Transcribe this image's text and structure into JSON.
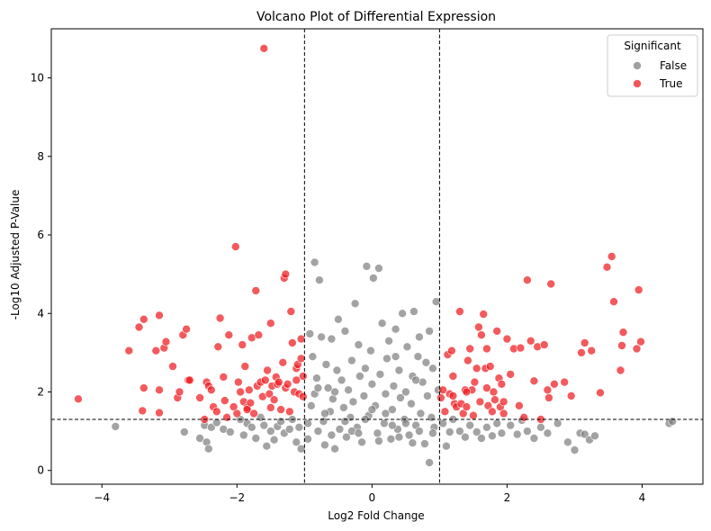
{
  "chart_data": {
    "type": "scatter",
    "title": "Volcano Plot of Differential Expression",
    "xlabel": "Log2 Fold Change",
    "ylabel": "-Log10 Adjusted P-Value",
    "xlim": [
      -4.75,
      4.9
    ],
    "ylim": [
      -0.35,
      11.25
    ],
    "xticks": [
      -4,
      -2,
      0,
      2,
      4
    ],
    "yticks": [
      0,
      2,
      4,
      6,
      8,
      10
    ],
    "thresholds": {
      "fold_change": [
        -1,
        1
      ],
      "neg_log10_p": 1.3
    },
    "grid": false,
    "legend": {
      "title": "Significant",
      "position": "top-right",
      "entries": [
        "False",
        "True"
      ]
    },
    "colors": {
      "False": "#808080",
      "True": "#ef1b1e"
    },
    "series": [
      {
        "name": "False",
        "points": [
          [
            -3.8,
            1.12
          ],
          [
            -2.78,
            0.98
          ],
          [
            -2.55,
            0.82
          ],
          [
            -2.48,
            1.15
          ],
          [
            -2.45,
            0.72
          ],
          [
            -2.42,
            0.55
          ],
          [
            -2.38,
            1.1
          ],
          [
            -2.3,
            1.22
          ],
          [
            -2.2,
            1.05
          ],
          [
            -2.1,
            0.98
          ],
          [
            -1.95,
            1.3
          ],
          [
            -1.9,
            0.9
          ],
          [
            -1.85,
            1.2
          ],
          [
            -1.78,
            1.1
          ],
          [
            -1.72,
            0.82
          ],
          [
            -1.65,
            1.35
          ],
          [
            -1.6,
            1.15
          ],
          [
            -1.56,
            0.62
          ],
          [
            -1.5,
            1.0
          ],
          [
            -1.45,
            0.78
          ],
          [
            -1.4,
            1.12
          ],
          [
            -1.35,
            1.25
          ],
          [
            -1.3,
            0.95
          ],
          [
            -1.22,
            1.05
          ],
          [
            -1.18,
            1.3
          ],
          [
            -1.12,
            0.72
          ],
          [
            -1.08,
            1.1
          ],
          [
            -1.05,
            0.55
          ],
          [
            -0.95,
            1.2
          ],
          [
            -0.92,
            3.48
          ],
          [
            -0.9,
            1.65
          ],
          [
            -0.88,
            2.9
          ],
          [
            -0.85,
            1.95
          ],
          [
            -0.85,
            5.3
          ],
          [
            -0.82,
            2.35
          ],
          [
            -0.8,
            1.0
          ],
          [
            -0.78,
            4.85
          ],
          [
            -0.75,
            3.4
          ],
          [
            -0.72,
            1.25
          ],
          [
            -0.7,
            0.65
          ],
          [
            -0.68,
            2.7
          ],
          [
            -0.65,
            2.1
          ],
          [
            -0.62,
            1.5
          ],
          [
            -0.6,
            3.35
          ],
          [
            -0.58,
            1.82
          ],
          [
            -0.55,
            0.55
          ],
          [
            -0.52,
            2.55
          ],
          [
            -0.5,
            3.85
          ],
          [
            -0.48,
            1.05
          ],
          [
            -0.45,
            2.3
          ],
          [
            -0.42,
            1.6
          ],
          [
            -0.4,
            3.55
          ],
          [
            -0.38,
            0.85
          ],
          [
            -0.35,
            2.05
          ],
          [
            -0.32,
            1.35
          ],
          [
            -0.3,
            2.8
          ],
          [
            -0.28,
            1.75
          ],
          [
            -0.25,
            4.25
          ],
          [
            -0.22,
            1.1
          ],
          [
            -0.2,
            3.2
          ],
          [
            -0.18,
            2.4
          ],
          [
            -0.15,
            0.72
          ],
          [
            -0.12,
            1.9
          ],
          [
            -0.1,
            2.6
          ],
          [
            -0.08,
            5.2
          ],
          [
            -0.05,
            1.4
          ],
          [
            -0.02,
            3.05
          ],
          [
            0.0,
            2.2
          ],
          [
            0.02,
            4.9
          ],
          [
            0.05,
            1.65
          ],
          [
            0.08,
            0.95
          ],
          [
            0.1,
            5.15
          ],
          [
            0.12,
            2.45
          ],
          [
            0.15,
            3.75
          ],
          [
            0.18,
            1.2
          ],
          [
            0.2,
            1.95
          ],
          [
            0.22,
            2.85
          ],
          [
            0.25,
            3.3
          ],
          [
            0.28,
            0.8
          ],
          [
            0.3,
            1.55
          ],
          [
            0.32,
            2.15
          ],
          [
            0.35,
            3.6
          ],
          [
            0.38,
            1.05
          ],
          [
            0.4,
            2.55
          ],
          [
            0.42,
            1.85
          ],
          [
            0.45,
            4.0
          ],
          [
            0.48,
            1.3
          ],
          [
            0.5,
            2.0
          ],
          [
            0.52,
            3.15
          ],
          [
            0.55,
            0.9
          ],
          [
            0.58,
            1.7
          ],
          [
            0.6,
            2.4
          ],
          [
            0.62,
            4.05
          ],
          [
            0.65,
            1.15
          ],
          [
            0.68,
            2.9
          ],
          [
            0.7,
            3.4
          ],
          [
            0.72,
            1.45
          ],
          [
            0.75,
            2.25
          ],
          [
            0.78,
            0.68
          ],
          [
            0.8,
            2.75
          ],
          [
            0.82,
            1.9
          ],
          [
            0.85,
            3.55
          ],
          [
            0.85,
            0.2
          ],
          [
            0.88,
            1.35
          ],
          [
            0.9,
            2.6
          ],
          [
            0.92,
            1.1
          ],
          [
            0.95,
            4.3
          ],
          [
            0.98,
            2.05
          ],
          [
            -0.95,
            0.8
          ],
          [
            -0.6,
            0.9
          ],
          [
            -0.3,
            1.0
          ],
          [
            0.1,
            0.75
          ],
          [
            0.4,
            0.85
          ],
          [
            0.7,
            1.0
          ],
          [
            -0.1,
            1.3
          ],
          [
            0.3,
            1.15
          ],
          [
            0.6,
            0.7
          ],
          [
            -0.7,
            1.45
          ],
          [
            -0.4,
            1.25
          ],
          [
            0.2,
            1.45
          ],
          [
            0.5,
            1.2
          ],
          [
            -0.2,
            0.95
          ],
          [
            0.9,
            0.95
          ],
          [
            -0.8,
            2.1
          ],
          [
            0.0,
            1.55
          ],
          [
            0.35,
            2.9
          ],
          [
            -0.55,
            2.0
          ],
          [
            0.65,
            2.3
          ],
          [
            1.05,
            1.2
          ],
          [
            1.1,
            0.62
          ],
          [
            1.15,
            0.98
          ],
          [
            1.2,
            1.3
          ],
          [
            1.3,
            1.0
          ],
          [
            1.38,
            0.85
          ],
          [
            1.45,
            1.15
          ],
          [
            1.55,
            0.98
          ],
          [
            1.62,
            0.82
          ],
          [
            1.7,
            1.1
          ],
          [
            1.78,
            0.88
          ],
          [
            1.85,
            1.2
          ],
          [
            1.92,
            0.95
          ],
          [
            2.05,
            1.15
          ],
          [
            2.15,
            0.92
          ],
          [
            2.22,
            1.28
          ],
          [
            2.3,
            1.0
          ],
          [
            2.4,
            0.82
          ],
          [
            2.5,
            1.1
          ],
          [
            2.6,
            0.95
          ],
          [
            2.75,
            1.2
          ],
          [
            2.9,
            0.72
          ],
          [
            3.0,
            0.52
          ],
          [
            3.08,
            0.95
          ],
          [
            3.15,
            0.92
          ],
          [
            3.22,
            0.78
          ],
          [
            3.3,
            0.88
          ],
          [
            4.4,
            1.2
          ],
          [
            4.45,
            1.25
          ]
        ]
      },
      {
        "name": "True",
        "points": [
          [
            -4.35,
            1.82
          ],
          [
            -3.6,
            3.05
          ],
          [
            -3.45,
            3.65
          ],
          [
            -3.38,
            3.85
          ],
          [
            -3.38,
            2.1
          ],
          [
            -3.4,
            1.52
          ],
          [
            -3.2,
            3.05
          ],
          [
            -3.15,
            3.95
          ],
          [
            -3.15,
            2.05
          ],
          [
            -3.15,
            1.47
          ],
          [
            -3.08,
            3.12
          ],
          [
            -3.05,
            3.28
          ],
          [
            -2.95,
            2.65
          ],
          [
            -2.88,
            1.85
          ],
          [
            -2.85,
            2.0
          ],
          [
            -2.8,
            3.45
          ],
          [
            -2.75,
            3.6
          ],
          [
            -2.72,
            2.3
          ],
          [
            -2.7,
            2.3
          ],
          [
            -2.55,
            1.85
          ],
          [
            -2.48,
            1.3
          ],
          [
            -2.45,
            2.25
          ],
          [
            -2.42,
            2.15
          ],
          [
            -2.38,
            2.05
          ],
          [
            -2.35,
            1.62
          ],
          [
            -2.3,
            1.5
          ],
          [
            -2.28,
            3.15
          ],
          [
            -2.25,
            3.88
          ],
          [
            -2.2,
            2.38
          ],
          [
            -2.18,
            1.78
          ],
          [
            -2.15,
            1.35
          ],
          [
            -2.12,
            3.45
          ],
          [
            -2.05,
            1.62
          ],
          [
            -2.02,
            5.7
          ],
          [
            -1.98,
            2.25
          ],
          [
            -1.95,
            2.0
          ],
          [
            -1.92,
            3.2
          ],
          [
            -1.9,
            1.75
          ],
          [
            -1.88,
            2.65
          ],
          [
            -1.85,
            1.6
          ],
          [
            -1.82,
            2.05
          ],
          [
            -1.8,
            1.72
          ],
          [
            -1.78,
            3.38
          ],
          [
            -1.75,
            1.45
          ],
          [
            -1.72,
            4.58
          ],
          [
            -1.7,
            2.15
          ],
          [
            -1.68,
            3.45
          ],
          [
            -1.65,
            2.25
          ],
          [
            -1.62,
            1.88
          ],
          [
            -1.6,
            10.75
          ],
          [
            -1.58,
            2.3
          ],
          [
            -1.55,
            2.55
          ],
          [
            -1.52,
            1.95
          ],
          [
            -1.5,
            3.75
          ],
          [
            -1.48,
            2.15
          ],
          [
            -1.45,
            1.8
          ],
          [
            -1.42,
            2.38
          ],
          [
            -1.4,
            2.2
          ],
          [
            -1.38,
            2.25
          ],
          [
            -1.35,
            1.55
          ],
          [
            -1.32,
            2.75
          ],
          [
            -1.3,
            4.9
          ],
          [
            -1.28,
            2.1
          ],
          [
            -1.28,
            5.0
          ],
          [
            -1.25,
            2.2
          ],
          [
            -1.22,
            1.5
          ],
          [
            -1.2,
            4.05
          ],
          [
            -1.18,
            3.25
          ],
          [
            -1.15,
            2.0
          ],
          [
            -1.12,
            2.6
          ],
          [
            -1.1,
            2.7
          ],
          [
            -1.08,
            1.95
          ],
          [
            -1.05,
            3.35
          ],
          [
            -1.05,
            2.85
          ],
          [
            -1.02,
            2.4
          ],
          [
            -1.02,
            1.88
          ],
          [
            -1.12,
            2.3
          ],
          [
            -1.5,
            1.6
          ],
          [
            -1.85,
            1.55
          ],
          [
            -2.0,
            1.45
          ],
          [
            1.02,
            1.85
          ],
          [
            1.05,
            2.05
          ],
          [
            1.08,
            1.5
          ],
          [
            1.12,
            2.95
          ],
          [
            1.15,
            1.95
          ],
          [
            1.18,
            3.05
          ],
          [
            1.2,
            2.4
          ],
          [
            1.22,
            1.7
          ],
          [
            1.25,
            1.62
          ],
          [
            1.3,
            4.05
          ],
          [
            1.32,
            1.7
          ],
          [
            1.35,
            1.45
          ],
          [
            1.38,
            2.05
          ],
          [
            1.4,
            1.62
          ],
          [
            1.42,
            2.8
          ],
          [
            1.45,
            3.1
          ],
          [
            1.48,
            2.05
          ],
          [
            1.5,
            1.4
          ],
          [
            1.52,
            2.25
          ],
          [
            1.55,
            2.6
          ],
          [
            1.58,
            3.65
          ],
          [
            1.6,
            1.75
          ],
          [
            1.62,
            3.45
          ],
          [
            1.65,
            3.98
          ],
          [
            1.68,
            2.6
          ],
          [
            1.7,
            3.1
          ],
          [
            1.72,
            1.65
          ],
          [
            1.75,
            2.65
          ],
          [
            1.78,
            1.5
          ],
          [
            1.8,
            2.0
          ],
          [
            1.82,
            1.8
          ],
          [
            1.85,
            3.55
          ],
          [
            1.88,
            2.35
          ],
          [
            1.9,
            1.62
          ],
          [
            1.92,
            2.2
          ],
          [
            1.95,
            1.75
          ],
          [
            2.0,
            3.35
          ],
          [
            2.05,
            2.45
          ],
          [
            2.1,
            3.1
          ],
          [
            2.18,
            1.65
          ],
          [
            2.2,
            3.12
          ],
          [
            2.25,
            1.35
          ],
          [
            2.3,
            4.85
          ],
          [
            2.35,
            3.3
          ],
          [
            2.4,
            2.28
          ],
          [
            2.45,
            3.15
          ],
          [
            2.5,
            1.3
          ],
          [
            2.55,
            3.2
          ],
          [
            2.62,
            1.85
          ],
          [
            2.65,
            4.75
          ],
          [
            2.7,
            2.2
          ],
          [
            2.85,
            2.25
          ],
          [
            2.95,
            1.9
          ],
          [
            3.1,
            3.0
          ],
          [
            3.15,
            3.25
          ],
          [
            3.25,
            3.05
          ],
          [
            3.38,
            1.98
          ],
          [
            3.48,
            5.18
          ],
          [
            3.55,
            5.45
          ],
          [
            3.58,
            4.3
          ],
          [
            3.68,
            2.55
          ],
          [
            3.7,
            3.18
          ],
          [
            3.72,
            3.52
          ],
          [
            3.92,
            3.1
          ],
          [
            3.95,
            4.6
          ],
          [
            3.98,
            3.28
          ],
          [
            1.2,
            1.9
          ],
          [
            1.4,
            2.0
          ],
          [
            1.7,
            2.1
          ],
          [
            1.95,
            1.45
          ],
          [
            2.6,
            2.05
          ]
        ]
      }
    ]
  }
}
